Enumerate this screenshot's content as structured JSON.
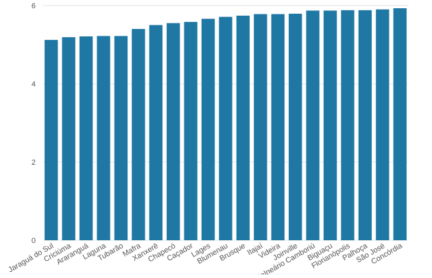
{
  "chart_data": {
    "type": "bar",
    "title": "",
    "xlabel": "",
    "ylabel": "",
    "ylim": [
      0,
      6
    ],
    "yticks": [
      0,
      2,
      4,
      6
    ],
    "grid": true,
    "bar_color": "#1f77a4",
    "categories": [
      "Jaraguá do Sul",
      "Criciúma",
      "Araranguá",
      "Laguna",
      "Tubarão",
      "Mafra",
      "Xanxerê",
      "Chapecó",
      "Caçador",
      "Lages",
      "Blumenau",
      "Brusque",
      "Itajaí",
      "Videira",
      "Joinville",
      "Balneário Camboriú",
      "Biguaçu",
      "Florianópolis",
      "Palhoça",
      "São José",
      "Concórdia"
    ],
    "values": [
      5.12,
      5.19,
      5.21,
      5.22,
      5.22,
      5.4,
      5.5,
      5.55,
      5.58,
      5.66,
      5.71,
      5.74,
      5.78,
      5.78,
      5.79,
      5.87,
      5.87,
      5.88,
      5.88,
      5.9,
      5.93
    ]
  }
}
